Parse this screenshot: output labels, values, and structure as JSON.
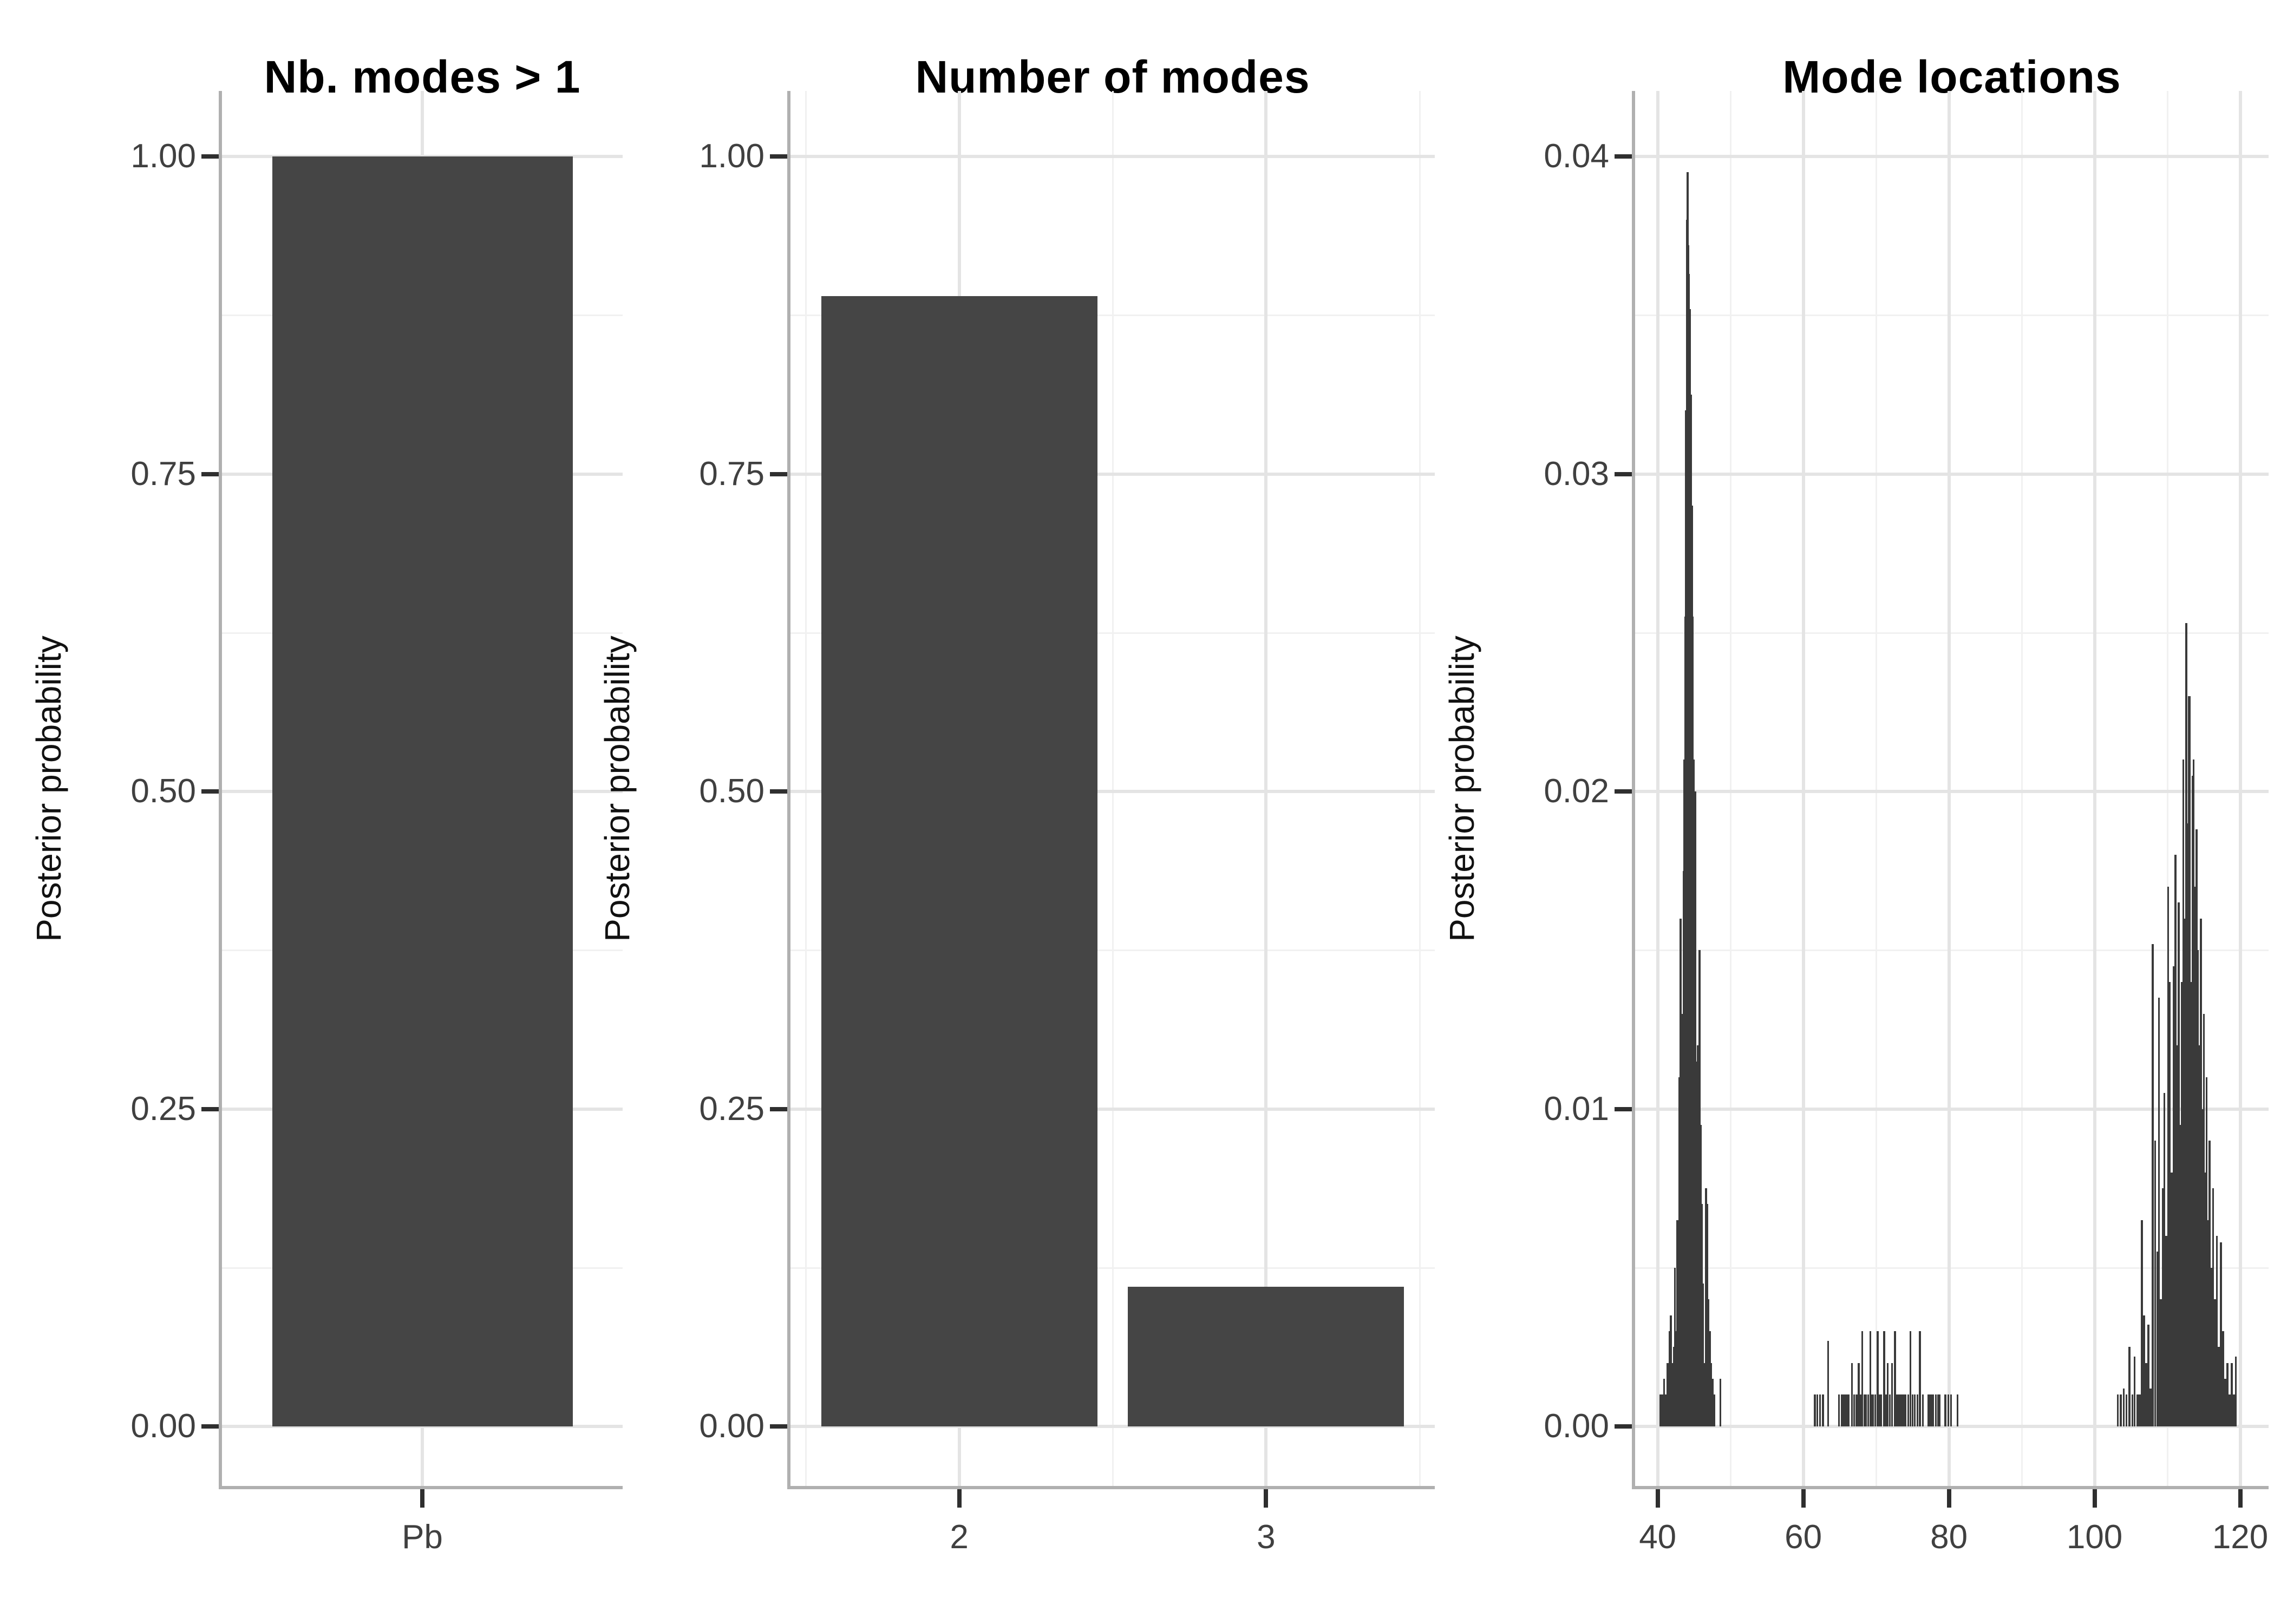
{
  "colors": {
    "bar_fill": "#454545",
    "spike": "#3a3a3a",
    "grid_major": "#e4e4e4",
    "grid_minor": "#f1f1f1",
    "axis_line": "#b0b0b0",
    "tick_mark": "#2f2f2f",
    "tick_label": "#404040",
    "title": "#000000",
    "axis_title": "#111111",
    "background": "#ffffff"
  },
  "chart_data": [
    {
      "type": "bar",
      "title": "Nb. modes > 1",
      "xlabel": "",
      "ylabel": "Posterior probability",
      "categories": [
        "Pb"
      ],
      "values": [
        1.0
      ],
      "ylim": [
        0,
        1.05
      ],
      "ytick_values": [
        0,
        0.25,
        0.5,
        0.75,
        1
      ],
      "ytick_labels": [
        "0.00",
        "0.25",
        "0.50",
        "0.75",
        "1.00"
      ],
      "grid": "major+minor",
      "legend": "none"
    },
    {
      "type": "bar",
      "title": "Number of modes",
      "xlabel": "",
      "ylabel": "Posterior probability",
      "categories": [
        "2",
        "3"
      ],
      "x_positions": [
        2,
        3
      ],
      "values": [
        0.89,
        0.11
      ],
      "bar_width_units": 0.9,
      "xlim": [
        1.45,
        3.55
      ],
      "ylim": [
        0,
        1.05
      ],
      "ytick_values": [
        0,
        0.25,
        0.5,
        0.75,
        1
      ],
      "ytick_labels": [
        "0.00",
        "0.25",
        "0.50",
        "0.75",
        "1.00"
      ],
      "x_minor_gridlines": [
        1.5,
        2.5,
        3.5
      ],
      "grid": "major+minor",
      "legend": "none"
    },
    {
      "type": "bar",
      "subtype": "spike-histogram",
      "title": "Mode locations",
      "xlabel": "",
      "ylabel": "Posterior probability",
      "xlim": [
        36.9,
        123.9
      ],
      "ylim": [
        0,
        0.042
      ],
      "xtick_values": [
        40,
        60,
        80,
        100,
        120
      ],
      "xtick_labels": [
        "40",
        "60",
        "80",
        "100",
        "120"
      ],
      "x_minor_gridlines": [
        50,
        70,
        90,
        110
      ],
      "ytick_values": [
        0,
        0.01,
        0.02,
        0.03,
        0.04
      ],
      "ytick_labels": [
        "0.00",
        "0.01",
        "0.02",
        "0.03",
        "0.04"
      ],
      "grid": "major+minor",
      "legend": "none",
      "points": [
        [
          40.4,
          0.001
        ],
        [
          40.65,
          0.001
        ],
        [
          40.9,
          0.0015
        ],
        [
          41.15,
          0.001
        ],
        [
          41.35,
          0.002
        ],
        [
          41.6,
          0.003
        ],
        [
          41.8,
          0.0035
        ],
        [
          42.0,
          0.002
        ],
        [
          42.2,
          0.0025
        ],
        [
          42.35,
          0.005
        ],
        [
          42.55,
          0.003
        ],
        [
          42.7,
          0.0065
        ],
        [
          42.85,
          0.004
        ],
        [
          43.0,
          0.011
        ],
        [
          43.15,
          0.016
        ],
        [
          43.3,
          0.008
        ],
        [
          43.4,
          0.013
        ],
        [
          43.55,
          0.0175
        ],
        [
          43.65,
          0.021
        ],
        [
          43.8,
          0.0255
        ],
        [
          43.9,
          0.032
        ],
        [
          44.0,
          0.038
        ],
        [
          44.1,
          0.0395
        ],
        [
          44.22,
          0.0372
        ],
        [
          44.32,
          0.0363
        ],
        [
          44.45,
          0.0352
        ],
        [
          44.6,
          0.0325
        ],
        [
          44.7,
          0.029
        ],
        [
          44.82,
          0.0255
        ],
        [
          44.95,
          0.021
        ],
        [
          45.1,
          0.013
        ],
        [
          45.2,
          0.02
        ],
        [
          45.35,
          0.0115
        ],
        [
          45.5,
          0.012
        ],
        [
          45.62,
          0.0105
        ],
        [
          45.75,
          0.015
        ],
        [
          45.9,
          0.0095
        ],
        [
          46.05,
          0.007
        ],
        [
          46.2,
          0.0045
        ],
        [
          46.35,
          0.002
        ],
        [
          46.5,
          0.002
        ],
        [
          46.65,
          0.0075
        ],
        [
          46.8,
          0.007
        ],
        [
          46.95,
          0.004
        ],
        [
          47.15,
          0.003
        ],
        [
          47.35,
          0.002
        ],
        [
          47.55,
          0.0015
        ],
        [
          47.8,
          0.001
        ],
        [
          48.6,
          0.0015
        ],
        [
          61.6,
          0.001
        ],
        [
          61.9,
          0.001
        ],
        [
          62.3,
          0.001
        ],
        [
          62.7,
          0.001
        ],
        [
          63.4,
          0.0027
        ],
        [
          64.9,
          0.001
        ],
        [
          65.3,
          0.001
        ],
        [
          65.6,
          0.001
        ],
        [
          65.8,
          0.001
        ],
        [
          66.0,
          0.001
        ],
        [
          66.2,
          0.001
        ],
        [
          66.7,
          0.002
        ],
        [
          67.0,
          0.001
        ],
        [
          67.3,
          0.001
        ],
        [
          67.6,
          0.002
        ],
        [
          67.9,
          0.001
        ],
        [
          68.1,
          0.003
        ],
        [
          68.4,
          0.001
        ],
        [
          68.6,
          0.001
        ],
        [
          68.9,
          0.001
        ],
        [
          69.2,
          0.003
        ],
        [
          69.4,
          0.001
        ],
        [
          69.6,
          0.001
        ],
        [
          69.9,
          0.001
        ],
        [
          70.2,
          0.003
        ],
        [
          70.5,
          0.001
        ],
        [
          70.7,
          0.001
        ],
        [
          71.1,
          0.003
        ],
        [
          71.4,
          0.001
        ],
        [
          71.6,
          0.002
        ],
        [
          71.9,
          0.001
        ],
        [
          72.2,
          0.002
        ],
        [
          72.6,
          0.003
        ],
        [
          72.9,
          0.001
        ],
        [
          73.1,
          0.001
        ],
        [
          73.4,
          0.001
        ],
        [
          73.7,
          0.001
        ],
        [
          74.0,
          0.001
        ],
        [
          74.4,
          0.001
        ],
        [
          74.7,
          0.003
        ],
        [
          75.0,
          0.001
        ],
        [
          75.3,
          0.001
        ],
        [
          75.7,
          0.001
        ],
        [
          76.0,
          0.003
        ],
        [
          76.4,
          0.001
        ],
        [
          77.2,
          0.001
        ],
        [
          77.5,
          0.001
        ],
        [
          77.8,
          0.001
        ],
        [
          78.2,
          0.001
        ],
        [
          78.5,
          0.001
        ],
        [
          78.7,
          0.001
        ],
        [
          79.5,
          0.001
        ],
        [
          79.9,
          0.001
        ],
        [
          80.3,
          0.001
        ],
        [
          81.2,
          0.001
        ],
        [
          103.2,
          0.001
        ],
        [
          103.6,
          0.001
        ],
        [
          104.0,
          0.0012
        ],
        [
          104.4,
          0.001
        ],
        [
          104.8,
          0.0025
        ],
        [
          105.2,
          0.001
        ],
        [
          105.5,
          0.0022
        ],
        [
          105.9,
          0.001
        ],
        [
          106.2,
          0.001
        ],
        [
          106.5,
          0.0065
        ],
        [
          106.8,
          0.0035
        ],
        [
          107.1,
          0.002
        ],
        [
          107.4,
          0.0032
        ],
        [
          107.7,
          0.0012
        ],
        [
          108.0,
          0.0152
        ],
        [
          108.3,
          0.009
        ],
        [
          108.6,
          0.0055
        ],
        [
          108.85,
          0.0135
        ],
        [
          109.1,
          0.004
        ],
        [
          109.35,
          0.0075
        ],
        [
          109.6,
          0.0105
        ],
        [
          109.85,
          0.006
        ],
        [
          110.1,
          0.017
        ],
        [
          110.35,
          0.014
        ],
        [
          110.6,
          0.008
        ],
        [
          110.85,
          0.0145
        ],
        [
          111.1,
          0.018
        ],
        [
          111.35,
          0.012
        ],
        [
          111.55,
          0.0165
        ],
        [
          111.75,
          0.0095
        ],
        [
          111.95,
          0.014
        ],
        [
          112.2,
          0.021
        ],
        [
          112.4,
          0.016
        ],
        [
          112.6,
          0.0253
        ],
        [
          112.75,
          0.019
        ],
        [
          112.95,
          0.023
        ],
        [
          113.1,
          0.023
        ],
        [
          113.3,
          0.014
        ],
        [
          113.45,
          0.0205
        ],
        [
          113.6,
          0.021
        ],
        [
          113.8,
          0.017
        ],
        [
          114.0,
          0.0188
        ],
        [
          114.2,
          0.015
        ],
        [
          114.4,
          0.012
        ],
        [
          114.6,
          0.016
        ],
        [
          114.8,
          0.01
        ],
        [
          115.0,
          0.013
        ],
        [
          115.2,
          0.008
        ],
        [
          115.4,
          0.011
        ],
        [
          115.6,
          0.0065
        ],
        [
          115.8,
          0.009
        ],
        [
          116.05,
          0.005
        ],
        [
          116.3,
          0.0075
        ],
        [
          116.55,
          0.004
        ],
        [
          116.8,
          0.006
        ],
        [
          117.05,
          0.0025
        ],
        [
          117.35,
          0.0058
        ],
        [
          117.65,
          0.003
        ],
        [
          117.95,
          0.0015
        ],
        [
          118.25,
          0.002
        ],
        [
          118.55,
          0.001
        ],
        [
          118.85,
          0.002
        ],
        [
          119.15,
          0.001
        ],
        [
          119.4,
          0.0022
        ]
      ]
    }
  ]
}
